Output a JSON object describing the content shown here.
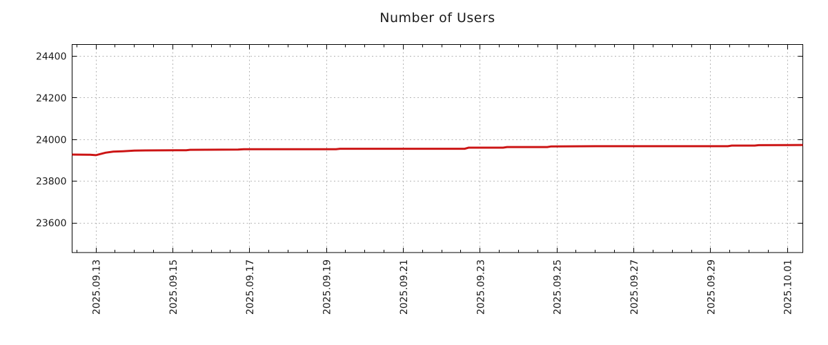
{
  "page": {
    "background": "#ffffff"
  },
  "chart_data": {
    "type": "line",
    "title": "Number of Users",
    "xlabel": "",
    "ylabel": "",
    "legend": "none",
    "grid": {
      "show": true,
      "color": "#b3b3b3",
      "dash": "2,3.5"
    },
    "axis_color": "#000000",
    "text_color": "#1a1a1a",
    "x_axis": {
      "tick_labels": [
        "2025.09.13",
        "2025.09.15",
        "2025.09.17",
        "2025.09.19",
        "2025.09.21",
        "2025.09.23",
        "2025.09.25",
        "2025.09.27",
        "2025.09.29",
        "2025.10.01"
      ],
      "tick_offsets_days": [
        0,
        2,
        4,
        6,
        8,
        10,
        12,
        14,
        16,
        18
      ],
      "minor_tick_step_days": 0.5,
      "xlim_days": [
        -0.62,
        18.4
      ]
    },
    "y_axis": {
      "tick_values": [
        23600,
        23800,
        24000,
        24200,
        24400
      ],
      "ylim": [
        23458,
        24456
      ]
    },
    "series": [
      {
        "name": "Number of Users",
        "color": "#cc1414",
        "line_width": 3,
        "points_day_value": [
          [
            -0.62,
            23928
          ],
          [
            -0.15,
            23927
          ],
          [
            0.0,
            23925
          ],
          [
            0.1,
            23930
          ],
          [
            0.25,
            23937
          ],
          [
            0.45,
            23942
          ],
          [
            0.7,
            23944
          ],
          [
            1.0,
            23947
          ],
          [
            1.3,
            23948
          ],
          [
            2.35,
            23949
          ],
          [
            2.45,
            23951
          ],
          [
            3.7,
            23952
          ],
          [
            3.85,
            23954
          ],
          [
            6.25,
            23954
          ],
          [
            6.35,
            23956
          ],
          [
            9.6,
            23956
          ],
          [
            9.7,
            23961
          ],
          [
            10.6,
            23961
          ],
          [
            10.7,
            23964
          ],
          [
            11.75,
            23964
          ],
          [
            11.85,
            23967
          ],
          [
            13.0,
            23968
          ],
          [
            16.45,
            23968
          ],
          [
            16.55,
            23971
          ],
          [
            17.15,
            23971
          ],
          [
            17.25,
            23973
          ],
          [
            18.4,
            23974
          ]
        ]
      }
    ]
  }
}
